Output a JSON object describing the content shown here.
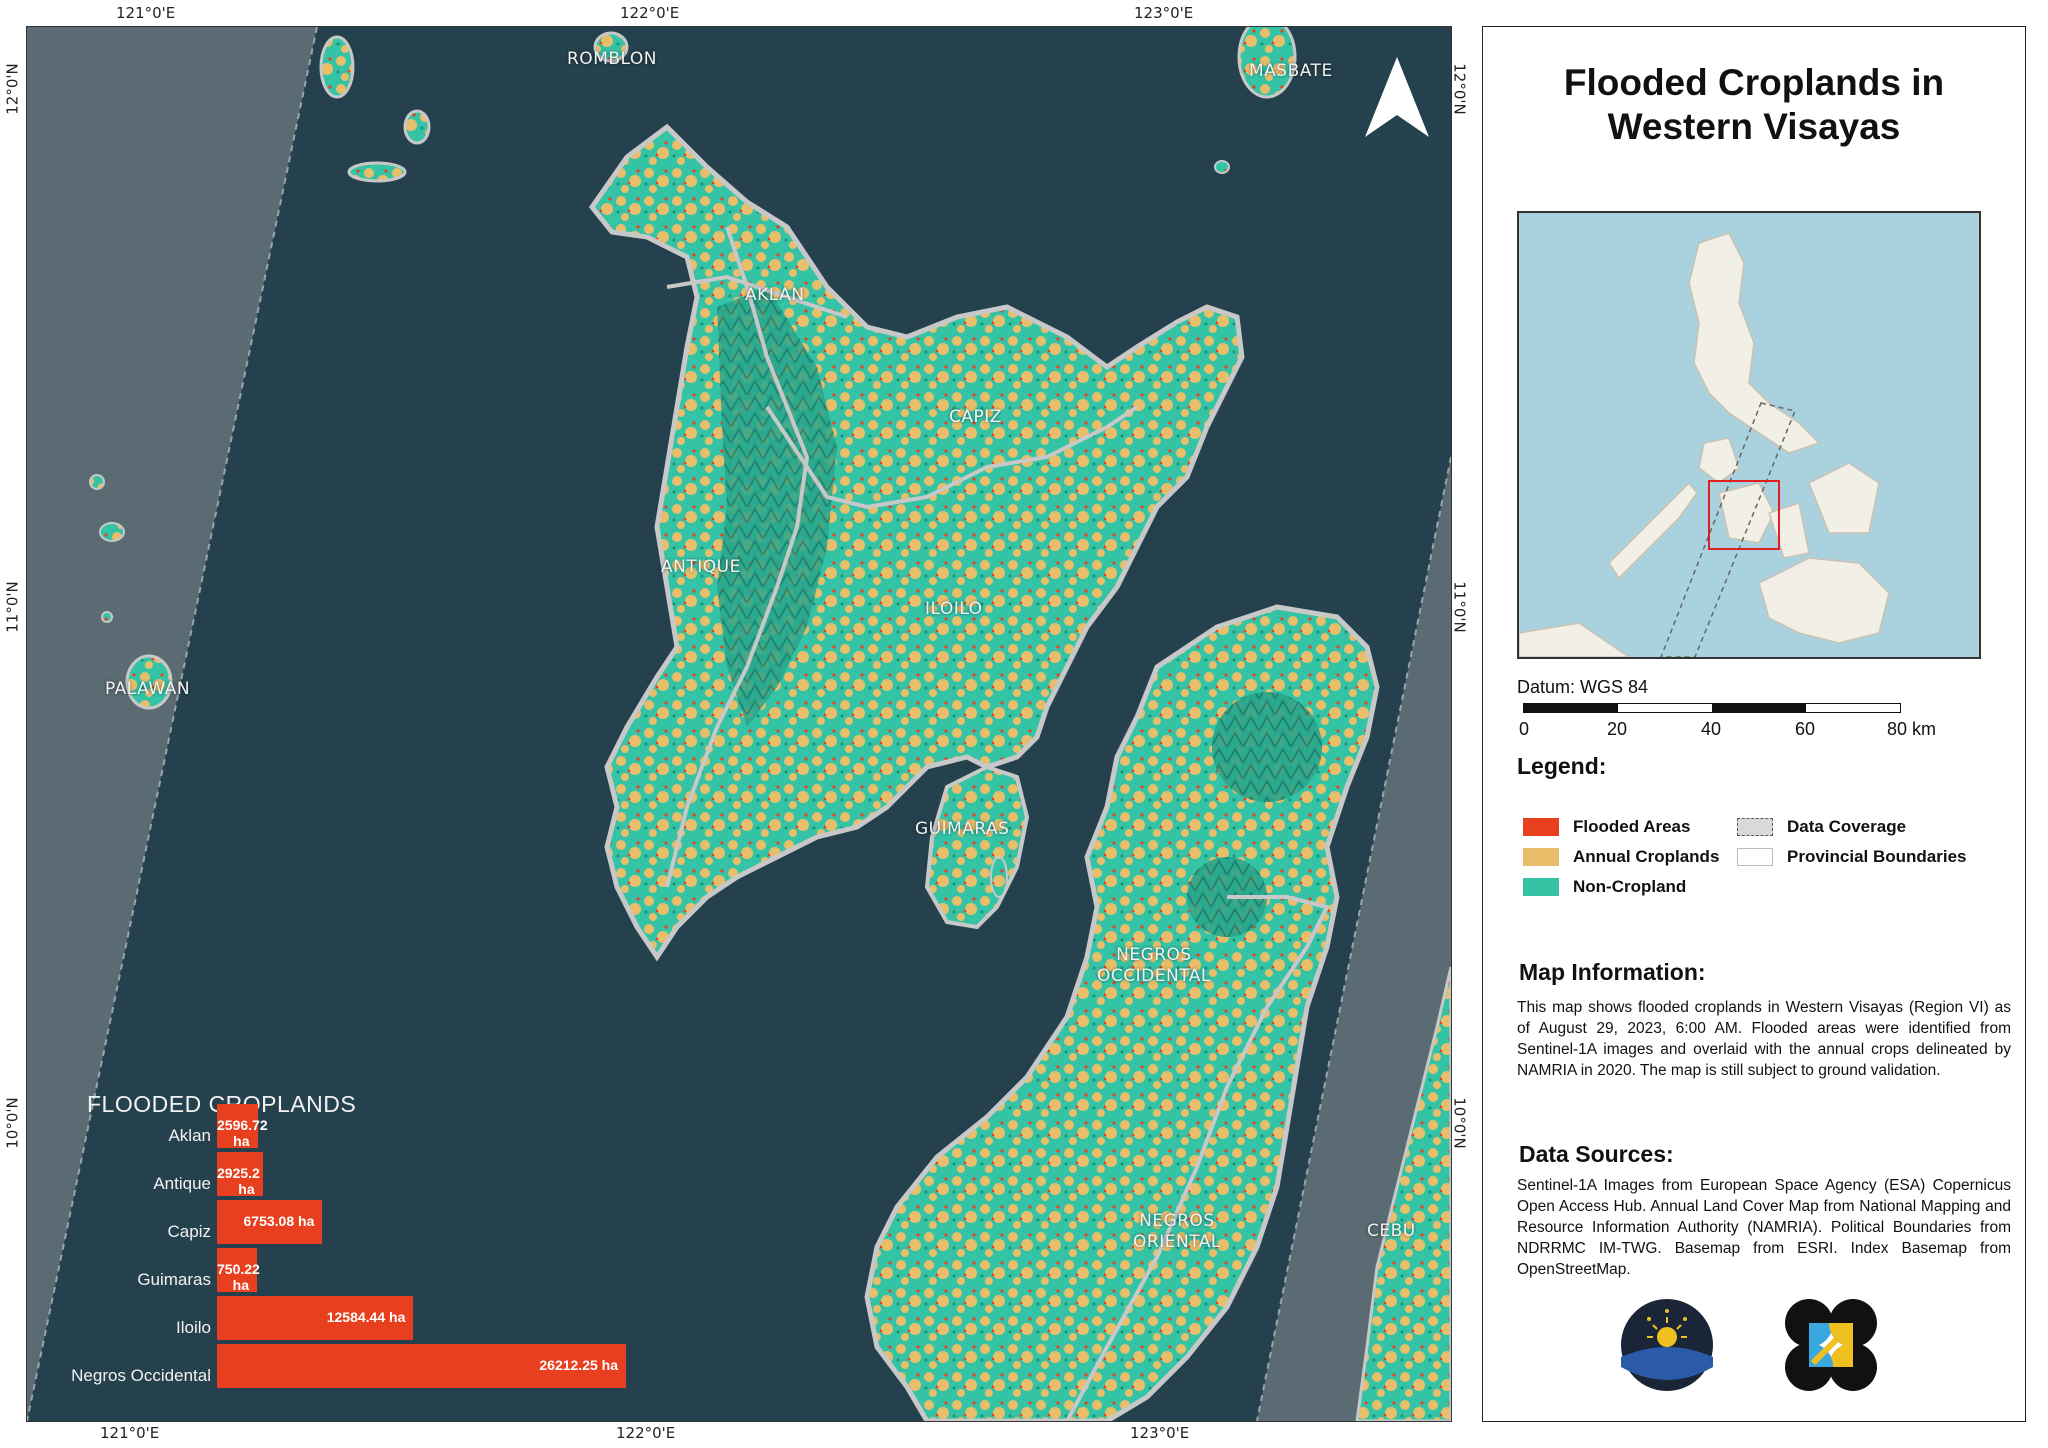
{
  "map": {
    "coordinates": {
      "top": [
        "121°0'E",
        "122°0'E",
        "123°0'E"
      ],
      "bottom": [
        "121°0'E",
        "122°0'E",
        "123°0'E"
      ],
      "left": [
        "12°0'N",
        "11°0'N",
        "10°0'N"
      ],
      "right": [
        "12°0'N",
        "11°0'N",
        "10°0'N"
      ]
    },
    "province_labels": {
      "romblon": "ROMBLON",
      "masbate": "MASBATE",
      "aklan": "AKLAN",
      "capiz": "CAPIZ",
      "antique": "ANTIQUE",
      "iloilo": "ILOILO",
      "palawan": "PALAWAN",
      "guimaras": "GUIMARAS",
      "negros_occidental_1": "NEGROS",
      "negros_occidental_2": "OCCIDENTAL",
      "negros_oriental_1": "NEGROS",
      "negros_oriental_2": "ORIENTAL",
      "cebu": "CEBU"
    },
    "north_arrow_icon": "north-arrow-icon"
  },
  "chart_data": {
    "type": "bar",
    "orientation": "horizontal",
    "title": "FLOODED CROPLANDS",
    "categories": [
      "Aklan",
      "Antique",
      "Capiz",
      "Guimaras",
      "Iloilo",
      "Negros Occidental"
    ],
    "values": [
      2596.72,
      2925.2,
      6753.08,
      750.22,
      12584.44,
      26212.25
    ],
    "value_labels": [
      "2596.72 ha",
      "2925.2 ha",
      "6753.08 ha",
      "750.22 ha",
      "12584.44 ha",
      "26212.25 ha"
    ],
    "bar_color": "#e8401e"
  },
  "panel": {
    "title_line1": "Flooded Croplands in",
    "title_line2": "Western Visayas",
    "datum": "Datum: WGS 84",
    "scale_labels": [
      "0",
      "20",
      "40",
      "60",
      "80 km"
    ],
    "legend_heading": "Legend:",
    "legend": [
      {
        "label": "Flooded Areas",
        "color": "#e8401e"
      },
      {
        "label": "Annual Croplands",
        "color": "#e8be6a"
      },
      {
        "label": "Non-Cropland",
        "color": "#35c3a6"
      },
      {
        "label": "Data Coverage",
        "color": "#d9d9d9"
      },
      {
        "label": "Provincial Boundaries",
        "color": "#ffffff"
      }
    ],
    "map_info_heading": "Map Information:",
    "map_info_text": "This map shows flooded croplands in Western Visayas (Region VI) as of August 29, 2023, 6:00 AM. Flooded areas were identified from Sentinel-1A images and overlaid with the annual crops delineated by NAMRIA in 2020. The map is still subject to ground validation.",
    "data_sources_heading": "Data Sources:",
    "data_sources_text": "Sentinel-1A Images from European Space Agency (ESA) Copernicus Open Access Hub. Annual Land Cover Map from National Mapping and Resource Information Authority (NAMRIA). Political Boundaries from NDRRMC IM-TWG. Basemap from ESRI. Index Basemap from OpenStreetMap.",
    "logos": [
      "agency-seal-logo",
      "project-logo"
    ]
  },
  "colors": {
    "sea": "#25414d",
    "outside_coverage": "#5a6b73",
    "land_noncrop": "#35c3a6",
    "land_crop": "#e8be6a",
    "flood": "#e8401e",
    "boundary": "#c8c8c8"
  }
}
